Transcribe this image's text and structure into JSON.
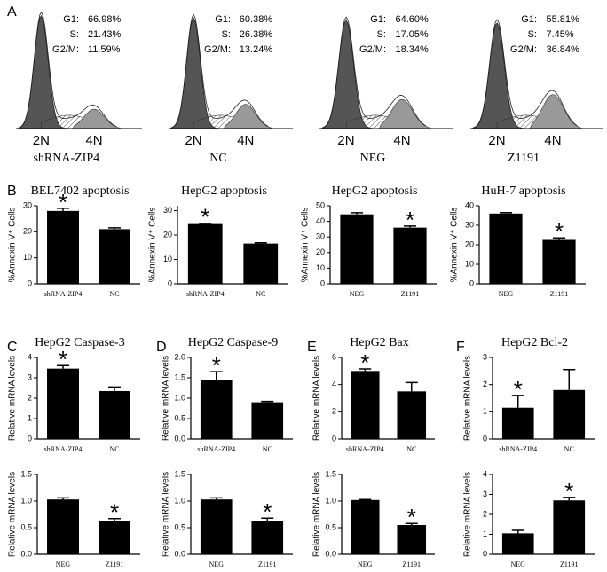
{
  "chart_data": [
    {
      "type": "flow-histogram",
      "panel": "A",
      "caption": "shRNA-ZIP4",
      "x_labels": [
        "2N",
        "4N"
      ],
      "stats": [
        {
          "label": "G1:",
          "value": "66.98%"
        },
        {
          "label": "S:",
          "value": "21.43%"
        },
        {
          "label": "G2/M:",
          "value": "11.59%"
        }
      ]
    },
    {
      "type": "flow-histogram",
      "caption": "NC",
      "x_labels": [
        "2N",
        "4N"
      ],
      "stats": [
        {
          "label": "G1:",
          "value": "60.38%"
        },
        {
          "label": "S:",
          "value": "26.38%"
        },
        {
          "label": "G2/M:",
          "value": "13.24%"
        }
      ]
    },
    {
      "type": "flow-histogram",
      "caption": "NEG",
      "x_labels": [
        "2N",
        "4N"
      ],
      "stats": [
        {
          "label": "G1:",
          "value": "64.60%"
        },
        {
          "label": "S:",
          "value": "17.05%"
        },
        {
          "label": "G2/M:",
          "value": "18.34%"
        }
      ]
    },
    {
      "type": "flow-histogram",
      "caption": "Z1191",
      "x_labels": [
        "2N",
        "4N"
      ],
      "stats": [
        {
          "label": "G1:",
          "value": "55.81%"
        },
        {
          "label": "S:",
          "value": "7.45%"
        },
        {
          "label": "G2/M:",
          "value": "36.84%"
        }
      ]
    },
    {
      "type": "bar",
      "panel": "B",
      "title": "BEL7402 apoptosis",
      "y_label": "%Annexin V⁺ Cells",
      "categories": [
        "shRNA-ZIP4",
        "NC"
      ],
      "values": [
        28,
        21
      ],
      "errors": [
        1,
        0.5
      ],
      "significance": [
        "*",
        null
      ],
      "ylim": [
        0,
        30
      ],
      "yticks": [
        0,
        10,
        20,
        30
      ],
      "color": "#000000"
    },
    {
      "type": "bar",
      "title": "HepG2 apoptosis",
      "y_label": "%Annexin V⁺ Cells",
      "categories": [
        "shRNA-ZIP4",
        "NC"
      ],
      "values": [
        24.5,
        16.5
      ],
      "errors": [
        0.3,
        0.3
      ],
      "significance": [
        "*",
        null
      ],
      "ylim": [
        0,
        32
      ],
      "yticks": [
        0,
        10,
        20,
        30
      ],
      "color": "#000000"
    },
    {
      "type": "bar",
      "title": "HepG2 apoptosis",
      "y_label": "%Annexin V⁺ Cells",
      "categories": [
        "NEG",
        "Z1191"
      ],
      "values": [
        44.5,
        36
      ],
      "errors": [
        1,
        1
      ],
      "significance": [
        null,
        "*"
      ],
      "ylim": [
        0,
        50
      ],
      "yticks": [
        0,
        10,
        20,
        30,
        40,
        50
      ],
      "color": "#000000"
    },
    {
      "type": "bar",
      "title": "HuH-7 apoptosis",
      "y_label": "%Annexin V⁺ Cells",
      "categories": [
        "NEG",
        "Z1191"
      ],
      "values": [
        36,
        22.5
      ],
      "errors": [
        0.5,
        1
      ],
      "significance": [
        null,
        "*"
      ],
      "ylim": [
        0,
        40
      ],
      "yticks": [
        0,
        10,
        20,
        30,
        40
      ],
      "color": "#000000"
    },
    {
      "type": "bar",
      "panel": "C",
      "title": "HepG2 Caspase-3",
      "y_label": "Relative mRNA levels",
      "categories": [
        "shRNA-ZIP4",
        "NC"
      ],
      "values": [
        3.45,
        2.35
      ],
      "errors": [
        0.15,
        0.2
      ],
      "significance": [
        "*",
        null
      ],
      "ylim": [
        0,
        4
      ],
      "yticks": [
        0,
        1,
        2,
        3,
        4
      ],
      "color": "#000000"
    },
    {
      "type": "bar",
      "panel": "D",
      "title": "HepG2 Caspase-9",
      "y_label": "Relative mRNA levels",
      "categories": [
        "shRNA-ZIP4",
        "NC"
      ],
      "values": [
        1.45,
        0.9
      ],
      "errors": [
        0.2,
        0.02
      ],
      "significance": [
        "*",
        null
      ],
      "ylim": [
        0,
        2
      ],
      "yticks": [
        {
          "value": 0,
          "label": "0.0"
        },
        0.5,
        {
          "value": 1,
          "label": "1.0"
        },
        1.5,
        {
          "value": 2,
          "label": "2.0"
        }
      ],
      "color": "#000000"
    },
    {
      "type": "bar",
      "panel": "E",
      "title": "HepG2 Bax",
      "y_label": "Relative mRNA levels",
      "categories": [
        "shRNA-ZIP4",
        "NC"
      ],
      "values": [
        5,
        3.5
      ],
      "errors": [
        0.15,
        0.65
      ],
      "significance": [
        "*",
        null
      ],
      "ylim": [
        0,
        6
      ],
      "yticks": [
        0,
        2,
        4,
        6
      ],
      "color": "#000000"
    },
    {
      "type": "bar",
      "panel": "F",
      "title": "HepG2 Bcl-2",
      "y_label": "Relative mRNA levels",
      "categories": [
        "shRNA-ZIP4",
        "NC"
      ],
      "values": [
        1.15,
        1.8
      ],
      "errors": [
        0.45,
        0.75
      ],
      "significance": [
        "*",
        null
      ],
      "ylim": [
        0,
        3
      ],
      "yticks": [
        0,
        1,
        2,
        3
      ],
      "color": "#000000"
    },
    {
      "type": "bar",
      "y_label": "Relative mRNA levels",
      "categories": [
        "NEG",
        "Z1191"
      ],
      "values": [
        1.03,
        0.63
      ],
      "errors": [
        0.03,
        0.04
      ],
      "significance": [
        null,
        "*"
      ],
      "ylim": [
        0,
        1.5
      ],
      "yticks": [
        {
          "value": 0,
          "label": "0.0"
        },
        0.5,
        {
          "value": 1,
          "label": "1.0"
        },
        1.5
      ],
      "color": "#000000"
    },
    {
      "type": "bar",
      "y_label": "Relative mRNA levels",
      "categories": [
        "NEG",
        "Z1191"
      ],
      "values": [
        1.03,
        0.63
      ],
      "errors": [
        0.03,
        0.05
      ],
      "significance": [
        null,
        "*"
      ],
      "ylim": [
        0,
        1.5
      ],
      "yticks": [
        {
          "value": 0,
          "label": "0.0"
        },
        0.5,
        {
          "value": 1,
          "label": "1.0"
        },
        1.5
      ],
      "color": "#000000"
    },
    {
      "type": "bar",
      "y_label": "Relative mRNA levels",
      "categories": [
        "NEG",
        "Z1191"
      ],
      "values": [
        1.02,
        0.55
      ],
      "errors": [
        0.01,
        0.03
      ],
      "significance": [
        null,
        "*"
      ],
      "ylim": [
        0,
        1.5
      ],
      "yticks": [
        {
          "value": 0,
          "label": "0.0"
        },
        0.5,
        {
          "value": 1,
          "label": "1.0"
        },
        1.5
      ],
      "color": "#000000"
    },
    {
      "type": "bar",
      "y_label": "Relative mRNA levels",
      "categories": [
        "NEG",
        "Z1191"
      ],
      "values": [
        1.05,
        2.7
      ],
      "errors": [
        0.15,
        0.15
      ],
      "significance": [
        null,
        "*"
      ],
      "ylim": [
        0,
        4
      ],
      "yticks": [
        0,
        1,
        2,
        3,
        4
      ],
      "color": "#000000"
    }
  ]
}
